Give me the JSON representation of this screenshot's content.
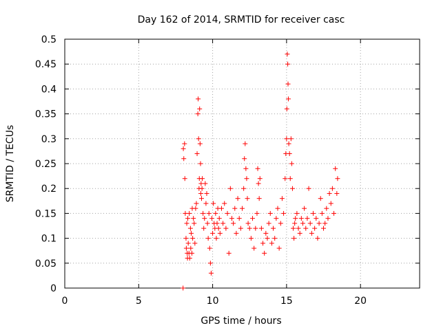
{
  "chart_data": {
    "type": "scatter",
    "title": "Day 162 of 2014, SRMTID for receiver casc",
    "xlabel": "GPS time / hours",
    "ylabel": "SRMTID / TECUs",
    "xlim": [
      0,
      24
    ],
    "ylim": [
      0,
      0.5
    ],
    "x_ticks": [
      0,
      5,
      10,
      15,
      20
    ],
    "x_tick_labels": [
      "0",
      "5",
      "10",
      "15",
      "20"
    ],
    "y_ticks": [
      0,
      0.05,
      0.1,
      0.15,
      0.2,
      0.25,
      0.3,
      0.35,
      0.4,
      0.45,
      0.5
    ],
    "y_tick_labels": [
      "0",
      "0.05",
      "0.1",
      "0.15",
      "0.2",
      "0.25",
      "0.3",
      "0.35",
      "0.4",
      "0.45",
      "0.5"
    ],
    "grid": true,
    "marker": "+",
    "marker_color": "#ff0000",
    "series": [
      {
        "name": "SRMTID",
        "x": [
          8.0,
          8.02,
          8.05,
          8.1,
          8.12,
          8.15,
          8.2,
          8.22,
          8.25,
          8.28,
          8.3,
          8.32,
          8.35,
          8.4,
          8.42,
          8.45,
          8.5,
          8.52,
          8.55,
          8.6,
          8.62,
          8.65,
          8.7,
          8.75,
          8.8,
          8.85,
          8.9,
          8.95,
          9.0,
          9.02,
          9.05,
          9.08,
          9.1,
          9.12,
          9.15,
          9.18,
          9.2,
          9.22,
          9.25,
          9.28,
          9.3,
          9.35,
          9.4,
          9.45,
          9.5,
          9.55,
          9.6,
          9.65,
          9.7,
          9.75,
          9.8,
          9.85,
          9.9,
          9.95,
          10.0,
          10.05,
          10.1,
          10.15,
          10.2,
          10.25,
          10.3,
          10.35,
          10.4,
          10.45,
          10.5,
          10.6,
          10.7,
          10.8,
          10.9,
          11.0,
          11.1,
          11.2,
          11.3,
          11.4,
          11.5,
          11.6,
          11.7,
          11.8,
          11.9,
          12.0,
          12.1,
          12.15,
          12.2,
          12.25,
          12.3,
          12.35,
          12.4,
          12.5,
          12.6,
          12.7,
          12.8,
          12.9,
          13.0,
          13.05,
          13.1,
          13.15,
          13.2,
          13.3,
          13.4,
          13.5,
          13.6,
          13.7,
          13.8,
          13.9,
          14.0,
          14.1,
          14.2,
          14.3,
          14.4,
          14.5,
          14.6,
          14.7,
          14.8,
          14.9,
          14.95,
          15.0,
          15.02,
          15.05,
          15.08,
          15.1,
          15.12,
          15.15,
          15.2,
          15.25,
          15.3,
          15.35,
          15.4,
          15.45,
          15.5,
          15.55,
          15.6,
          15.7,
          15.8,
          15.9,
          16.0,
          16.1,
          16.2,
          16.3,
          16.4,
          16.5,
          16.6,
          16.7,
          16.8,
          16.9,
          17.0,
          17.1,
          17.2,
          17.3,
          17.4,
          17.5,
          17.6,
          17.7,
          17.8,
          17.9,
          18.0,
          18.1,
          18.2,
          18.3,
          18.4,
          18.45
        ],
        "y": [
          0.0,
          0.28,
          0.26,
          0.29,
          0.22,
          0.15,
          0.1,
          0.08,
          0.13,
          0.07,
          0.06,
          0.14,
          0.09,
          0.07,
          0.15,
          0.06,
          0.12,
          0.08,
          0.11,
          0.07,
          0.16,
          0.1,
          0.14,
          0.13,
          0.09,
          0.16,
          0.17,
          0.27,
          0.35,
          0.38,
          0.3,
          0.2,
          0.22,
          0.36,
          0.29,
          0.25,
          0.19,
          0.21,
          0.18,
          0.2,
          0.22,
          0.15,
          0.12,
          0.14,
          0.21,
          0.17,
          0.19,
          0.13,
          0.1,
          0.15,
          0.08,
          0.05,
          0.03,
          0.14,
          0.11,
          0.17,
          0.13,
          0.12,
          0.15,
          0.1,
          0.13,
          0.16,
          0.12,
          0.14,
          0.11,
          0.16,
          0.13,
          0.17,
          0.12,
          0.15,
          0.07,
          0.2,
          0.14,
          0.13,
          0.16,
          0.11,
          0.18,
          0.14,
          0.12,
          0.16,
          0.2,
          0.26,
          0.29,
          0.24,
          0.22,
          0.18,
          0.13,
          0.12,
          0.1,
          0.14,
          0.08,
          0.12,
          0.15,
          0.24,
          0.21,
          0.18,
          0.22,
          0.12,
          0.09,
          0.07,
          0.11,
          0.1,
          0.13,
          0.15,
          0.09,
          0.12,
          0.1,
          0.14,
          0.16,
          0.08,
          0.13,
          0.18,
          0.15,
          0.22,
          0.27,
          0.3,
          0.36,
          0.47,
          0.45,
          0.41,
          0.38,
          0.29,
          0.27,
          0.22,
          0.3,
          0.25,
          0.2,
          0.12,
          0.1,
          0.13,
          0.14,
          0.15,
          0.12,
          0.11,
          0.14,
          0.13,
          0.16,
          0.12,
          0.14,
          0.2,
          0.13,
          0.11,
          0.15,
          0.12,
          0.14,
          0.1,
          0.13,
          0.18,
          0.15,
          0.12,
          0.13,
          0.16,
          0.14,
          0.19,
          0.17,
          0.2,
          0.15,
          0.24,
          0.19,
          0.22
        ]
      }
    ]
  }
}
